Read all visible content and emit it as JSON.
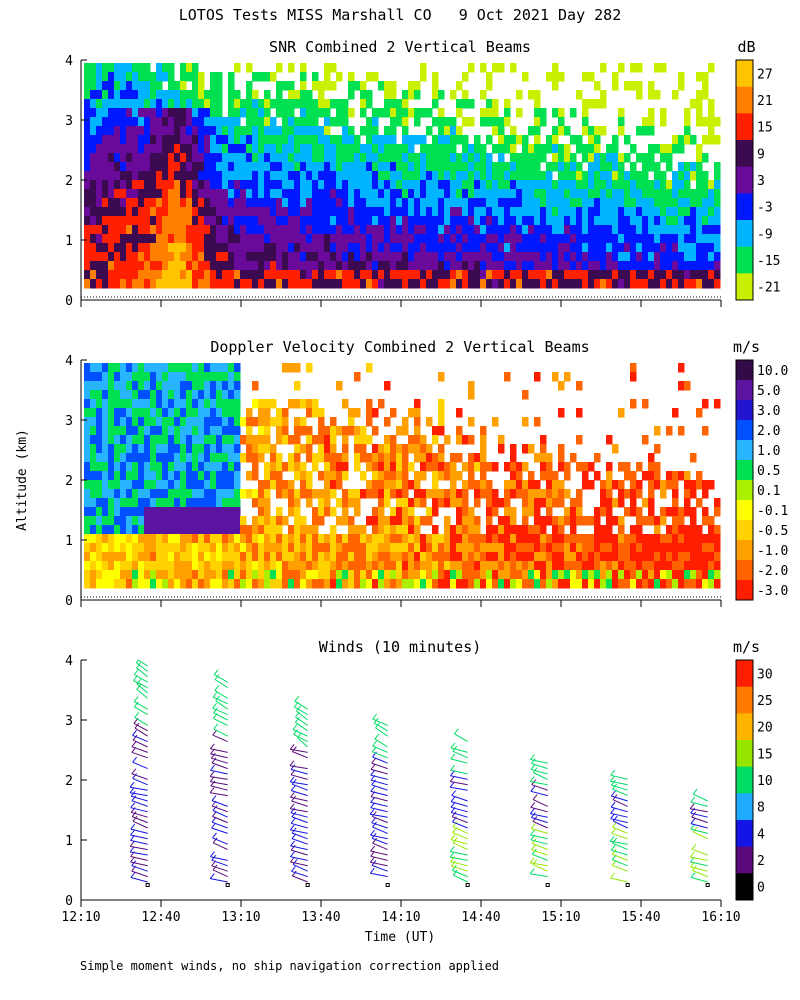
{
  "figure": {
    "title": "LOTOS Tests MISS Marshall CO   9 Oct 2021 Day 282",
    "ylabel": "Altitude (km)",
    "xlabel": "Time (UT)",
    "footnote": "Simple moment winds, no ship navigation correction applied",
    "x_ticks": [
      "12:10",
      "12:40",
      "13:10",
      "13:40",
      "14:10",
      "14:40",
      "15:10",
      "15:40",
      "16:10"
    ],
    "y_ticks": [
      "0",
      "1",
      "2",
      "3",
      "4"
    ]
  },
  "chart_data": [
    {
      "type": "heatmap",
      "title": "SNR Combined 2 Vertical Beams",
      "colorbar_unit": "dB",
      "colorbar_labels": [
        "27",
        "21",
        "15",
        "9",
        "3",
        "-3",
        "-9",
        "-15",
        "-21"
      ],
      "colorbar_colors": [
        "#ffc400",
        "#ff7f00",
        "#ff2000",
        "#3c0a50",
        "#6a0a9a",
        "#0018ff",
        "#00b4ff",
        "#00e050",
        "#c8f000"
      ],
      "xlim": [
        "12:10",
        "16:10"
      ],
      "ylim": [
        0,
        4
      ],
      "data_range_altitude_km": [
        0.25,
        4.0
      ]
    },
    {
      "type": "heatmap",
      "title": "Doppler Velocity Combined 2 Vertical Beams",
      "colorbar_unit": "m/s",
      "colorbar_labels": [
        "10.0",
        "5.0",
        "3.0",
        "2.0",
        "1.0",
        "0.5",
        "0.1",
        "-0.1",
        "-0.5",
        "-1.0",
        "-2.0",
        "-3.0"
      ],
      "colorbar_colors": [
        "#320a46",
        "#5a14a0",
        "#2314d2",
        "#0050ff",
        "#28b4ff",
        "#00e050",
        "#aaf000",
        "#ffff00",
        "#ffd200",
        "#ffa000",
        "#ff6400",
        "#ff1e00"
      ],
      "xlim": [
        "12:10",
        "16:10"
      ],
      "ylim": [
        0,
        4
      ]
    },
    {
      "type": "scatter",
      "title": "Winds (10 minutes)",
      "colorbar_unit": "m/s",
      "colorbar_labels": [
        "30",
        "25",
        "20",
        "15",
        "10",
        "8",
        "4",
        "2",
        "0"
      ],
      "colorbar_colors": [
        "#ff1e00",
        "#ff7800",
        "#ffb400",
        "#96e600",
        "#00dc64",
        "#1eaaff",
        "#1414e6",
        "#5a0a7a",
        "#000000"
      ],
      "profile_times": [
        "12:35",
        "13:05",
        "13:35",
        "14:05",
        "14:35",
        "15:05",
        "15:35",
        "16:05"
      ],
      "xlim": [
        "12:10",
        "16:10"
      ],
      "ylim": [
        0,
        4
      ]
    }
  ]
}
